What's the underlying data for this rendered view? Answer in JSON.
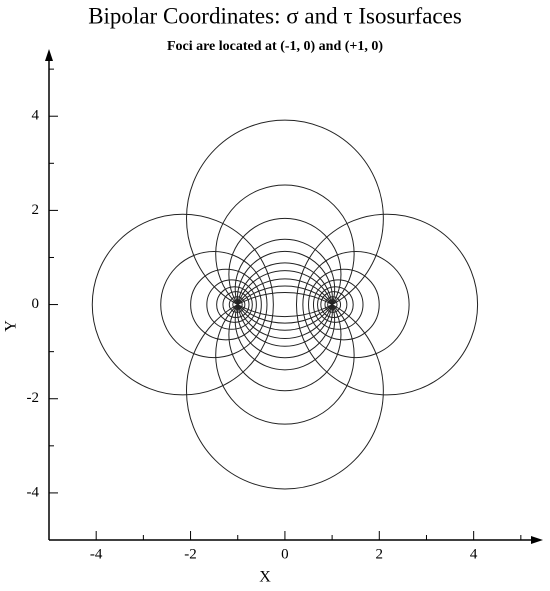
{
  "chart_data": {
    "type": "circles",
    "title": "Bipolar Coordinates: σ and τ Isosurfaces",
    "subtitle": "Foci are located at (-1, 0) and (+1, 0)",
    "x_label": "X",
    "y_label": "Y",
    "xlim": [
      -5,
      5.3
    ],
    "ylim": [
      -5,
      5.3
    ],
    "xticks": [
      -4,
      -2,
      0,
      2,
      4
    ],
    "yticks": [
      -4,
      -2,
      0,
      2,
      4
    ],
    "xminorticks": [
      -5,
      -3,
      -1,
      1,
      3,
      5
    ],
    "yminorticks": [
      -5,
      -3,
      -1,
      1,
      3,
      5
    ],
    "color": "#222222",
    "sigma_circles": [
      {
        "cx": 0,
        "cy": 1.83,
        "r": 2.086
      },
      {
        "cx": 0,
        "cy": -1.83,
        "r": 2.086
      },
      {
        "cx": 0,
        "cy": 1.073,
        "r": 1.467
      },
      {
        "cx": 0,
        "cy": -1.073,
        "r": 1.467
      },
      {
        "cx": 0,
        "cy": 0.642,
        "r": 1.188
      },
      {
        "cx": 0,
        "cy": -0.642,
        "r": 1.188
      },
      {
        "cx": 0,
        "cy": 0.332,
        "r": 1.054
      },
      {
        "cx": 0,
        "cy": -0.332,
        "r": 1.054
      },
      {
        "cx": 0,
        "cy": 0.122,
        "r": 1.007
      },
      {
        "cx": 0,
        "cy": -0.122,
        "r": 1.007
      }
    ],
    "tau_circles": [
      {
        "cx": 2.164,
        "cy": 0,
        "r": 1.919
      },
      {
        "cx": -2.164,
        "cy": 0,
        "r": 1.919
      },
      {
        "cx": 1.506,
        "cy": 0,
        "r": 1.126
      },
      {
        "cx": -1.506,
        "cy": 0,
        "r": 1.126
      },
      {
        "cx": 1.249,
        "cy": 0,
        "r": 0.749
      },
      {
        "cx": -1.249,
        "cy": 0,
        "r": 0.749
      },
      {
        "cx": 1.13,
        "cy": 0,
        "r": 0.525
      },
      {
        "cx": -1.13,
        "cy": 0,
        "r": 0.525
      },
      {
        "cx": 1.069,
        "cy": 0,
        "r": 0.378
      },
      {
        "cx": -1.069,
        "cy": 0,
        "r": 0.378
      },
      {
        "cx": 1.037,
        "cy": 0,
        "r": 0.276
      },
      {
        "cx": -1.037,
        "cy": 0,
        "r": 0.276
      },
      {
        "cx": 1.014,
        "cy": 0,
        "r": 0.165
      },
      {
        "cx": -1.014,
        "cy": 0,
        "r": 0.165
      },
      {
        "cx": 1.005,
        "cy": 0,
        "r": 0.1
      },
      {
        "cx": -1.005,
        "cy": 0,
        "r": 0.1
      }
    ]
  }
}
